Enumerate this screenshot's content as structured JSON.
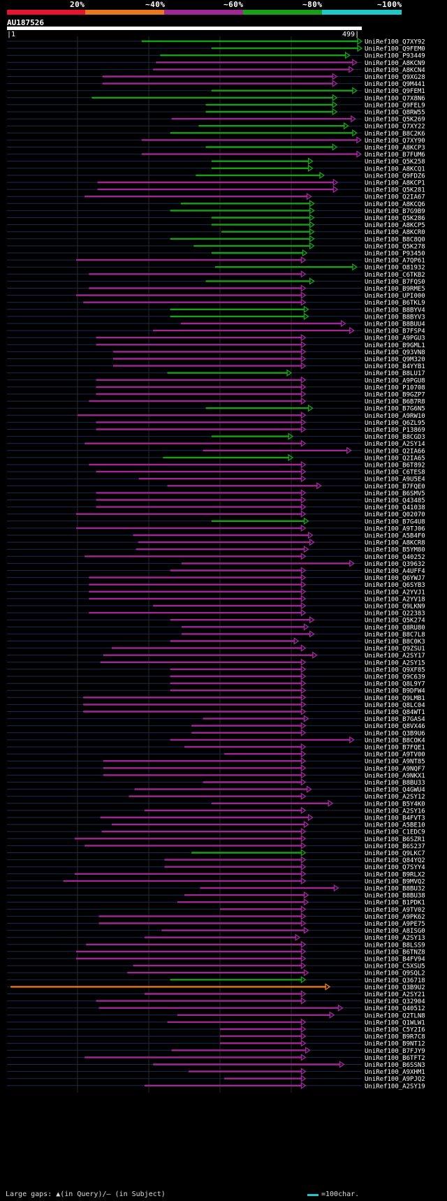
{
  "legend": {
    "labels": [
      "20%",
      "~40%",
      "~60%",
      "~80%",
      "~100%"
    ],
    "colors": [
      "#e8142e",
      "#e8781e",
      "#a02896",
      "#18a018",
      "#1ec8c8"
    ]
  },
  "query": {
    "id": "AU187526",
    "start": "1",
    "end": "499"
  },
  "footer": {
    "gap_text": "Large gaps: ▲(in Query)/— (in Subject)",
    "scale_text": "=100char."
  },
  "chart_data": {
    "type": "alignment-map",
    "title": "AU187526",
    "query_length": 499,
    "x_range": [
      1,
      499
    ],
    "colors": {
      "green": "#18a018",
      "purple": "#a02896",
      "orange": "#e8781e"
    },
    "hits": [
      {
        "id": "UniRef100_Q7XY92",
        "s": 190,
        "e": 499,
        "c": "green"
      },
      {
        "id": "UniRef100_Q9FEM0",
        "s": 288,
        "e": 499,
        "c": "green"
      },
      {
        "id": "UniRef100_P93449",
        "s": 216,
        "e": 482,
        "c": "green"
      },
      {
        "id": "UniRef100_A8KCN9",
        "s": 210,
        "e": 492,
        "c": "purple"
      },
      {
        "id": "UniRef100_A8KCN4",
        "s": 206,
        "e": 487,
        "c": "purple"
      },
      {
        "id": "UniRef100_Q9XG28",
        "s": 135,
        "e": 464,
        "c": "purple"
      },
      {
        "id": "UniRef100_Q9M441",
        "s": 135,
        "e": 464,
        "c": "purple"
      },
      {
        "id": "UniRef100_Q9FEM1",
        "s": 288,
        "e": 492,
        "c": "green"
      },
      {
        "id": "UniRef100_Q7X8N6",
        "s": 120,
        "e": 464,
        "c": "green"
      },
      {
        "id": "UniRef100_Q9FEL9",
        "s": 280,
        "e": 464,
        "c": "green"
      },
      {
        "id": "UniRef100_Q8RW55",
        "s": 280,
        "e": 464,
        "c": "green"
      },
      {
        "id": "UniRef100_Q5K269",
        "s": 232,
        "e": 490,
        "c": "purple"
      },
      {
        "id": "UniRef100_Q7XY22",
        "s": 270,
        "e": 480,
        "c": "green"
      },
      {
        "id": "UniRef100_B8C2K6",
        "s": 230,
        "e": 492,
        "c": "green"
      },
      {
        "id": "UniRef100_Q7XY90",
        "s": 190,
        "e": 498,
        "c": "purple"
      },
      {
        "id": "UniRef100_A8KCP3",
        "s": 280,
        "e": 464,
        "c": "green"
      },
      {
        "id": "UniRef100_B7FUM6",
        "s": 190,
        "e": 498,
        "c": "purple"
      },
      {
        "id": "UniRef100_Q5K258",
        "s": 288,
        "e": 430,
        "c": "green"
      },
      {
        "id": "UniRef100_A8KCQ1",
        "s": 288,
        "e": 430,
        "c": "green"
      },
      {
        "id": "UniRef100_Q9FDZ6",
        "s": 266,
        "e": 446,
        "c": "green"
      },
      {
        "id": "UniRef100_A8KCP1",
        "s": 128,
        "e": 465,
        "c": "purple"
      },
      {
        "id": "UniRef100_Q5K281",
        "s": 128,
        "e": 465,
        "c": "purple"
      },
      {
        "id": "UniRef100_Q2IA67",
        "s": 110,
        "e": 428,
        "c": "purple"
      },
      {
        "id": "UniRef100_A8KCQ6",
        "s": 245,
        "e": 432,
        "c": "green"
      },
      {
        "id": "UniRef100_B7G9B9",
        "s": 230,
        "e": 432,
        "c": "green"
      },
      {
        "id": "UniRef100_Q5K286",
        "s": 288,
        "e": 432,
        "c": "green"
      },
      {
        "id": "UniRef100_A8KCP5",
        "s": 288,
        "e": 432,
        "c": "green"
      },
      {
        "id": "UniRef100_A8KCR0",
        "s": 302,
        "e": 432,
        "c": "green"
      },
      {
        "id": "UniRef100_B8C8Q0",
        "s": 230,
        "e": 432,
        "c": "green"
      },
      {
        "id": "UniRef100_Q5K278",
        "s": 263,
        "e": 432,
        "c": "green"
      },
      {
        "id": "UniRef100_P93450",
        "s": 288,
        "e": 422,
        "c": "green"
      },
      {
        "id": "UniRef100_A7QP61",
        "s": 98,
        "e": 420,
        "c": "purple"
      },
      {
        "id": "UniRef100_O81932",
        "s": 293,
        "e": 492,
        "c": "green"
      },
      {
        "id": "UniRef100_C6TKB2",
        "s": 116,
        "e": 420,
        "c": "purple"
      },
      {
        "id": "UniRef100_B7FQS0",
        "s": 280,
        "e": 432,
        "c": "green"
      },
      {
        "id": "UniRef100_B9RME5",
        "s": 116,
        "e": 420,
        "c": "purple"
      },
      {
        "id": "UniRef100_UPI000",
        "s": 98,
        "e": 420,
        "c": "purple"
      },
      {
        "id": "UniRef100_B6TKL9",
        "s": 108,
        "e": 420,
        "c": "purple"
      },
      {
        "id": "UniRef100_B8BYV4",
        "s": 230,
        "e": 424,
        "c": "green"
      },
      {
        "id": "UniRef100_B8BYV3",
        "s": 230,
        "e": 424,
        "c": "green"
      },
      {
        "id": "UniRef100_B8BUU4",
        "s": 245,
        "e": 476,
        "c": "purple"
      },
      {
        "id": "UniRef100_B7FSP4",
        "s": 206,
        "e": 488,
        "c": "purple"
      },
      {
        "id": "UniRef100_A9PGU3",
        "s": 126,
        "e": 420,
        "c": "purple"
      },
      {
        "id": "UniRef100_B9GML1",
        "s": 126,
        "e": 420,
        "c": "purple"
      },
      {
        "id": "UniRef100_Q93VN8",
        "s": 150,
        "e": 420,
        "c": "purple"
      },
      {
        "id": "UniRef100_Q9M320",
        "s": 150,
        "e": 420,
        "c": "purple"
      },
      {
        "id": "UniRef100_B4YYB1",
        "s": 150,
        "e": 420,
        "c": "purple"
      },
      {
        "id": "UniRef100_B8LU17",
        "s": 226,
        "e": 400,
        "c": "green"
      },
      {
        "id": "UniRef100_A9PGU8",
        "s": 126,
        "e": 420,
        "c": "purple"
      },
      {
        "id": "UniRef100_P10708",
        "s": 126,
        "e": 420,
        "c": "purple"
      },
      {
        "id": "UniRef100_B9GZP7",
        "s": 126,
        "e": 420,
        "c": "purple"
      },
      {
        "id": "UniRef100_B6B7R8",
        "s": 116,
        "e": 420,
        "c": "purple"
      },
      {
        "id": "UniRef100_B7G6N5",
        "s": 280,
        "e": 430,
        "c": "green"
      },
      {
        "id": "UniRef100_A9RW10",
        "s": 100,
        "e": 420,
        "c": "purple"
      },
      {
        "id": "UniRef100_Q6ZL95",
        "s": 126,
        "e": 420,
        "c": "purple"
      },
      {
        "id": "UniRef100_P13869",
        "s": 126,
        "e": 420,
        "c": "purple"
      },
      {
        "id": "UniRef100_B8CGD3",
        "s": 288,
        "e": 402,
        "c": "green"
      },
      {
        "id": "UniRef100_A2SY14",
        "s": 110,
        "e": 420,
        "c": "purple"
      },
      {
        "id": "UniRef100_Q2IA66",
        "s": 276,
        "e": 484,
        "c": "purple"
      },
      {
        "id": "UniRef100_Q2IA65",
        "s": 220,
        "e": 402,
        "c": "green"
      },
      {
        "id": "UniRef100_B6T892",
        "s": 116,
        "e": 420,
        "c": "purple"
      },
      {
        "id": "UniRef100_C6TES8",
        "s": 126,
        "e": 420,
        "c": "purple"
      },
      {
        "id": "UniRef100_A9U5E4",
        "s": 186,
        "e": 420,
        "c": "purple"
      },
      {
        "id": "UniRef100_B7FQE0",
        "s": 226,
        "e": 442,
        "c": "purple"
      },
      {
        "id": "UniRef100_B6SMV5",
        "s": 126,
        "e": 420,
        "c": "purple"
      },
      {
        "id": "UniRef100_Q43485",
        "s": 126,
        "e": 420,
        "c": "purple"
      },
      {
        "id": "UniRef100_Q41038",
        "s": 126,
        "e": 420,
        "c": "purple"
      },
      {
        "id": "UniRef100_Q02070",
        "s": 98,
        "e": 420,
        "c": "purple"
      },
      {
        "id": "UniRef100_B7G4U8",
        "s": 288,
        "e": 424,
        "c": "green"
      },
      {
        "id": "UniRef100_A9TJ06",
        "s": 98,
        "e": 420,
        "c": "purple"
      },
      {
        "id": "UniRef100_A5B4F0",
        "s": 178,
        "e": 430,
        "c": "purple"
      },
      {
        "id": "UniRef100_A8KCR8",
        "s": 185,
        "e": 432,
        "c": "purple"
      },
      {
        "id": "UniRef100_B5YM80",
        "s": 182,
        "e": 424,
        "c": "purple"
      },
      {
        "id": "UniRef100_Q40252",
        "s": 110,
        "e": 420,
        "c": "purple"
      },
      {
        "id": "UniRef100_Q39632",
        "s": 246,
        "e": 488,
        "c": "purple"
      },
      {
        "id": "UniRef100_A4UFF4",
        "s": 230,
        "e": 420,
        "c": "purple"
      },
      {
        "id": "UniRef100_Q6YWJ7",
        "s": 116,
        "e": 420,
        "c": "purple"
      },
      {
        "id": "UniRef100_Q6SYB3",
        "s": 116,
        "e": 420,
        "c": "purple"
      },
      {
        "id": "UniRef100_A2YVJ1",
        "s": 116,
        "e": 420,
        "c": "purple"
      },
      {
        "id": "UniRef100_A2YV18",
        "s": 116,
        "e": 420,
        "c": "purple"
      },
      {
        "id": "UniRef100_Q9LKN9",
        "s": 206,
        "e": 420,
        "c": "purple"
      },
      {
        "id": "UniRef100_Q22383",
        "s": 116,
        "e": 420,
        "c": "purple"
      },
      {
        "id": "UniRef100_Q5K274",
        "s": 230,
        "e": 432,
        "c": "purple"
      },
      {
        "id": "UniRef100_Q8RU80",
        "s": 246,
        "e": 424,
        "c": "purple"
      },
      {
        "id": "UniRef100_B8C7L8",
        "s": 246,
        "e": 432,
        "c": "purple"
      },
      {
        "id": "UniRef100_B8C0K3",
        "s": 230,
        "e": 410,
        "c": "purple"
      },
      {
        "id": "UniRef100_Q9ZSU1",
        "s": 148,
        "e": 420,
        "c": "purple"
      },
      {
        "id": "UniRef100_A2SY17",
        "s": 136,
        "e": 436,
        "c": "purple"
      },
      {
        "id": "UniRef100_A2SY15",
        "s": 132,
        "e": 420,
        "c": "purple"
      },
      {
        "id": "UniRef100_Q9XF85",
        "s": 230,
        "e": 420,
        "c": "purple"
      },
      {
        "id": "UniRef100_Q9C639",
        "s": 230,
        "e": 420,
        "c": "purple"
      },
      {
        "id": "UniRef100_Q8L9Y7",
        "s": 230,
        "e": 420,
        "c": "purple"
      },
      {
        "id": "UniRef100_B9DFW4",
        "s": 230,
        "e": 420,
        "c": "purple"
      },
      {
        "id": "UniRef100_Q9LMB1",
        "s": 108,
        "e": 420,
        "c": "purple"
      },
      {
        "id": "UniRef100_Q8LC04",
        "s": 108,
        "e": 420,
        "c": "purple"
      },
      {
        "id": "UniRef100_Q84WT1",
        "s": 108,
        "e": 420,
        "c": "purple"
      },
      {
        "id": "UniRef100_B7GAS4",
        "s": 276,
        "e": 424,
        "c": "purple"
      },
      {
        "id": "UniRef100_Q8VX46",
        "s": 260,
        "e": 420,
        "c": "purple"
      },
      {
        "id": "UniRef100_Q3B9U6",
        "s": 260,
        "e": 420,
        "c": "purple"
      },
      {
        "id": "UniRef100_B8COK4",
        "s": 230,
        "e": 488,
        "c": "purple"
      },
      {
        "id": "UniRef100_B7FQE1",
        "s": 250,
        "e": 420,
        "c": "purple"
      },
      {
        "id": "UniRef100_A9TV00",
        "s": 306,
        "e": 420,
        "c": "purple"
      },
      {
        "id": "UniRef100_A9NT85",
        "s": 136,
        "e": 420,
        "c": "purple"
      },
      {
        "id": "UniRef100_A9NQF7",
        "s": 136,
        "e": 420,
        "c": "purple"
      },
      {
        "id": "UniRef100_A9NKX1",
        "s": 136,
        "e": 420,
        "c": "purple"
      },
      {
        "id": "UniRef100_B8BU33",
        "s": 276,
        "e": 420,
        "c": "purple"
      },
      {
        "id": "UniRef100_Q4GWU4",
        "s": 180,
        "e": 428,
        "c": "purple"
      },
      {
        "id": "UniRef100_A2SY12",
        "s": 172,
        "e": 420,
        "c": "purple"
      },
      {
        "id": "UniRef100_B5Y4K0",
        "s": 288,
        "e": 458,
        "c": "purple"
      },
      {
        "id": "UniRef100_A2SY16",
        "s": 194,
        "e": 420,
        "c": "purple"
      },
      {
        "id": "UniRef100_B4FVT3",
        "s": 132,
        "e": 430,
        "c": "purple"
      },
      {
        "id": "UniRef100_A5BE10",
        "s": 148,
        "e": 424,
        "c": "purple"
      },
      {
        "id": "UniRef100_C1EDC9",
        "s": 134,
        "e": 420,
        "c": "purple"
      },
      {
        "id": "UniRef100_B6SZR1",
        "s": 96,
        "e": 420,
        "c": "purple"
      },
      {
        "id": "UniRef100_B6S237",
        "s": 110,
        "e": 420,
        "c": "purple"
      },
      {
        "id": "UniRef100_Q9LKC7",
        "s": 260,
        "e": 420,
        "c": "green"
      },
      {
        "id": "UniRef100_Q84YQ2",
        "s": 222,
        "e": 420,
        "c": "purple"
      },
      {
        "id": "UniRef100_Q7SYY4",
        "s": 222,
        "e": 420,
        "c": "purple"
      },
      {
        "id": "UniRef100_B9RLX2",
        "s": 96,
        "e": 420,
        "c": "purple"
      },
      {
        "id": "UniRef100_B9MVQ2",
        "s": 80,
        "e": 420,
        "c": "purple"
      },
      {
        "id": "UniRef100_B8BU32",
        "s": 272,
        "e": 466,
        "c": "purple"
      },
      {
        "id": "UniRef100_B8BU38",
        "s": 250,
        "e": 424,
        "c": "purple"
      },
      {
        "id": "UniRef100_B1PDK1",
        "s": 240,
        "e": 424,
        "c": "purple"
      },
      {
        "id": "UniRef100_A9TV02",
        "s": 300,
        "e": 420,
        "c": "purple"
      },
      {
        "id": "UniRef100_A9PK62",
        "s": 130,
        "e": 420,
        "c": "purple"
      },
      {
        "id": "UniRef100_A9PE75",
        "s": 130,
        "e": 420,
        "c": "purple"
      },
      {
        "id": "UniRef100_A8ISG0",
        "s": 218,
        "e": 424,
        "c": "purple"
      },
      {
        "id": "UniRef100_A2SY13",
        "s": 194,
        "e": 412,
        "c": "purple"
      },
      {
        "id": "UniRef100_B8LSS9",
        "s": 112,
        "e": 420,
        "c": "purple"
      },
      {
        "id": "UniRef100_B6TNZ8",
        "s": 98,
        "e": 420,
        "c": "purple"
      },
      {
        "id": "UniRef100_B4FV94",
        "s": 98,
        "e": 420,
        "c": "purple"
      },
      {
        "id": "UniRef100_C5XSU5",
        "s": 178,
        "e": 420,
        "c": "purple"
      },
      {
        "id": "UniRef100_Q9SQL2",
        "s": 170,
        "e": 424,
        "c": "purple"
      },
      {
        "id": "UniRef100_Q36718",
        "s": 230,
        "e": 420,
        "c": "green"
      },
      {
        "id": "UniRef100_Q3B9U2",
        "s": 6,
        "e": 454,
        "c": "orange"
      },
      {
        "id": "UniRef100_A2SY21",
        "s": 194,
        "e": 420,
        "c": "purple"
      },
      {
        "id": "UniRef100_Q32904",
        "s": 126,
        "e": 420,
        "c": "purple"
      },
      {
        "id": "UniRef100_Q40512",
        "s": 130,
        "e": 472,
        "c": "purple"
      },
      {
        "id": "UniRef100_Q2TLN8",
        "s": 240,
        "e": 460,
        "c": "purple"
      },
      {
        "id": "UniRef100_Q1WLW1",
        "s": 226,
        "e": 420,
        "c": "purple"
      },
      {
        "id": "UniRef100_C5Y2I6",
        "s": 300,
        "e": 420,
        "c": "purple"
      },
      {
        "id": "UniRef100_B9R7C8",
        "s": 300,
        "e": 420,
        "c": "purple"
      },
      {
        "id": "UniRef100_B9NT12",
        "s": 300,
        "e": 420,
        "c": "purple"
      },
      {
        "id": "UniRef100_B7FJY9",
        "s": 232,
        "e": 426,
        "c": "purple"
      },
      {
        "id": "UniRef100_B6TFT2",
        "s": 110,
        "e": 420,
        "c": "purple"
      },
      {
        "id": "UniRef100_B6SSN3",
        "s": 206,
        "e": 474,
        "c": "purple"
      },
      {
        "id": "UniRef100_A9XHM1",
        "s": 256,
        "e": 420,
        "c": "purple"
      },
      {
        "id": "UniRef100_A9PJQ2",
        "s": 306,
        "e": 420,
        "c": "purple"
      },
      {
        "id": "UniRef100_A2SY19",
        "s": 194,
        "e": 420,
        "c": "purple"
      }
    ]
  }
}
